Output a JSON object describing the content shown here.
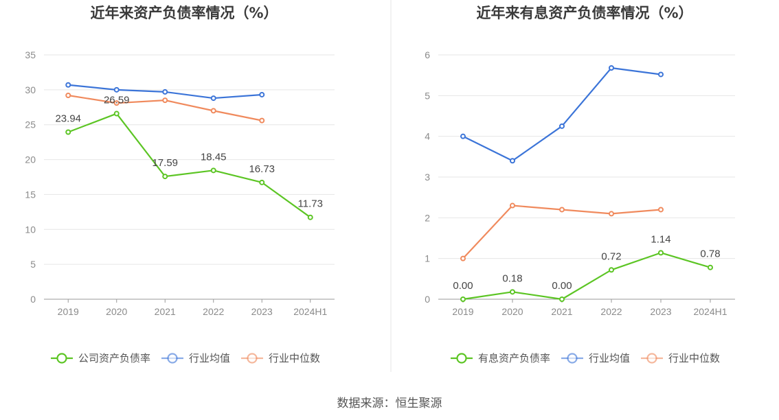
{
  "source": "数据来源：恒生聚源",
  "colors": {
    "company": "#5cc524",
    "industry_avg": "#3b74d8",
    "industry_median": "#f08a5d",
    "grid": "#e6e6e6",
    "axis": "#999999",
    "divider": "#e6e6e6"
  },
  "chart_data": [
    {
      "type": "line",
      "title": "近年来资产负债率情况（%）",
      "categories": [
        "2019",
        "2020",
        "2021",
        "2022",
        "2023",
        "2024H1"
      ],
      "ylim": [
        0,
        35
      ],
      "yticks": [
        0,
        5,
        10,
        15,
        20,
        25,
        30,
        35
      ],
      "ytick_labels": [
        "0",
        "5",
        "10",
        "15",
        "20",
        "25",
        "30",
        "35"
      ],
      "series": [
        {
          "name": "公司资产负债率",
          "key": "company",
          "values": [
            23.94,
            26.59,
            17.59,
            18.45,
            16.73,
            11.73
          ],
          "labels": [
            "23.94",
            "26.59",
            "17.59",
            "18.45",
            "16.73",
            "11.73"
          ]
        },
        {
          "name": "行业均值",
          "key": "industry_avg",
          "values": [
            30.7,
            30.0,
            29.7,
            28.8,
            29.3,
            null
          ]
        },
        {
          "name": "行业中位数",
          "key": "industry_median",
          "values": [
            29.2,
            28.1,
            28.5,
            27.0,
            25.6,
            null
          ]
        }
      ]
    },
    {
      "type": "line",
      "title": "近年来有息资产负债率情况（%）",
      "categories": [
        "2019",
        "2020",
        "2021",
        "2022",
        "2023",
        "2024H1"
      ],
      "ylim": [
        0,
        6
      ],
      "yticks": [
        0,
        1,
        2,
        3,
        4,
        5,
        6
      ],
      "ytick_labels": [
        "0",
        "1",
        "2",
        "3",
        "4",
        "5",
        "6"
      ],
      "series": [
        {
          "name": "有息资产负债率",
          "key": "company",
          "values": [
            0.0,
            0.18,
            0.0,
            0.72,
            1.14,
            0.78
          ],
          "labels": [
            "0.00",
            "0.18",
            "0.00",
            "0.72",
            "1.14",
            "0.78"
          ]
        },
        {
          "name": "行业均值",
          "key": "industry_avg",
          "values": [
            4.0,
            3.4,
            4.25,
            5.68,
            5.52,
            null
          ]
        },
        {
          "name": "行业中位数",
          "key": "industry_median",
          "values": [
            1.0,
            2.3,
            2.2,
            2.1,
            2.2,
            null
          ]
        }
      ]
    }
  ]
}
